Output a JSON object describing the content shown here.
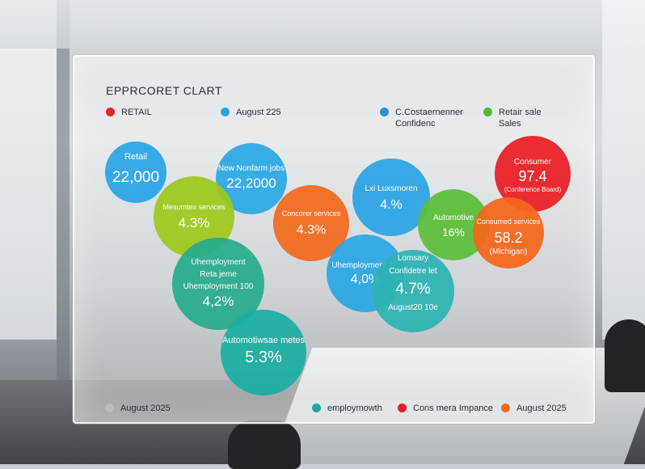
{
  "chart_data": {
    "type": "bubble",
    "title": "EPPRCORET CLART",
    "top_legend": [
      {
        "label": "RETAIL",
        "color": "#e8262a"
      },
      {
        "label": "August 225",
        "color": "#2ba3e3"
      },
      {
        "label": "C.Costaernenner Confidenc",
        "color": "#2a8fd8"
      },
      {
        "label": "Retair sale Sales",
        "color": "#52b83a"
      }
    ],
    "bubbles": [
      {
        "label": "Retail",
        "value": "22,000",
        "color": "#2aa4e6"
      },
      {
        "label": "New Nonfarm jobs",
        "value": "22,2000",
        "color": "#2ba8e4"
      },
      {
        "label": "Mesumtex services",
        "value": "4.3%",
        "color": "#9cc81c"
      },
      {
        "label": "Concorer services",
        "value": "4.3%",
        "color": "#f2691c"
      },
      {
        "label": "Lxi Luxsmoren",
        "value": "4.%",
        "color": "#2ba2e5"
      },
      {
        "label": "Automotive",
        "value": "16%",
        "color": "#5bbd3a"
      },
      {
        "label": "Consumer",
        "value": "97.4",
        "sub": "(Conference Board)",
        "color": "#ea1e24"
      },
      {
        "label": "Consumed services",
        "value": "58.2",
        "sub": "(Michigan)",
        "color": "#f4661a"
      },
      {
        "label": "Uhemployment Reta jeme Uhemployment 100",
        "value": "4,2%",
        "color": "#27ab8c"
      },
      {
        "label": "Uhemployment 7el",
        "value": "4,0%",
        "color": "#2ba6e3"
      },
      {
        "label": "Lomsary Confidetre let",
        "value": "4.7%",
        "sub": "August20 10e",
        "color": "#2db3b3"
      },
      {
        "label": "Automotiwsae metes",
        "value": "5.3%",
        "color": "#1aaea0"
      }
    ],
    "bottom_legend": [
      {
        "label": "August 2025",
        "color": "#b9bcc0"
      },
      {
        "label": "employmowth",
        "color": "#1ca99b"
      },
      {
        "label": "Cons mera Impance",
        "color": "#e41e24"
      },
      {
        "label": "August 2025",
        "color": "#f26a1b"
      }
    ]
  }
}
